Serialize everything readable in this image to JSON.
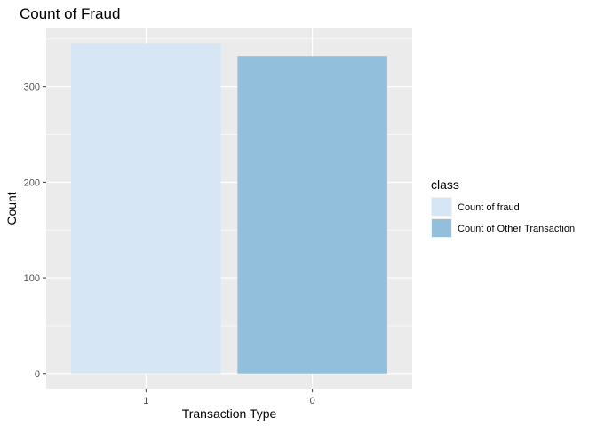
{
  "chart_data": {
    "type": "bar",
    "title": "Count of Fraud",
    "xlabel": "Transaction Type",
    "ylabel": "Count",
    "categories": [
      "1",
      "0"
    ],
    "values": [
      345,
      332
    ],
    "bar_colors": [
      "#d6e6f4",
      "#92bfdc"
    ],
    "ylim": [
      -16,
      361
    ],
    "yticks": [
      0,
      100,
      200,
      300
    ],
    "grid": true,
    "legend": {
      "title": "class",
      "position": "right",
      "entries": [
        {
          "label": "Count of fraud",
          "color": "#d6e6f4"
        },
        {
          "label": "Count of Other Transaction",
          "color": "#92bfdc"
        }
      ]
    }
  },
  "colors": {
    "panel_background": "#ebebeb",
    "gridline": "#ffffff",
    "axis_text": "#4d4d4d",
    "text": "#000000"
  }
}
